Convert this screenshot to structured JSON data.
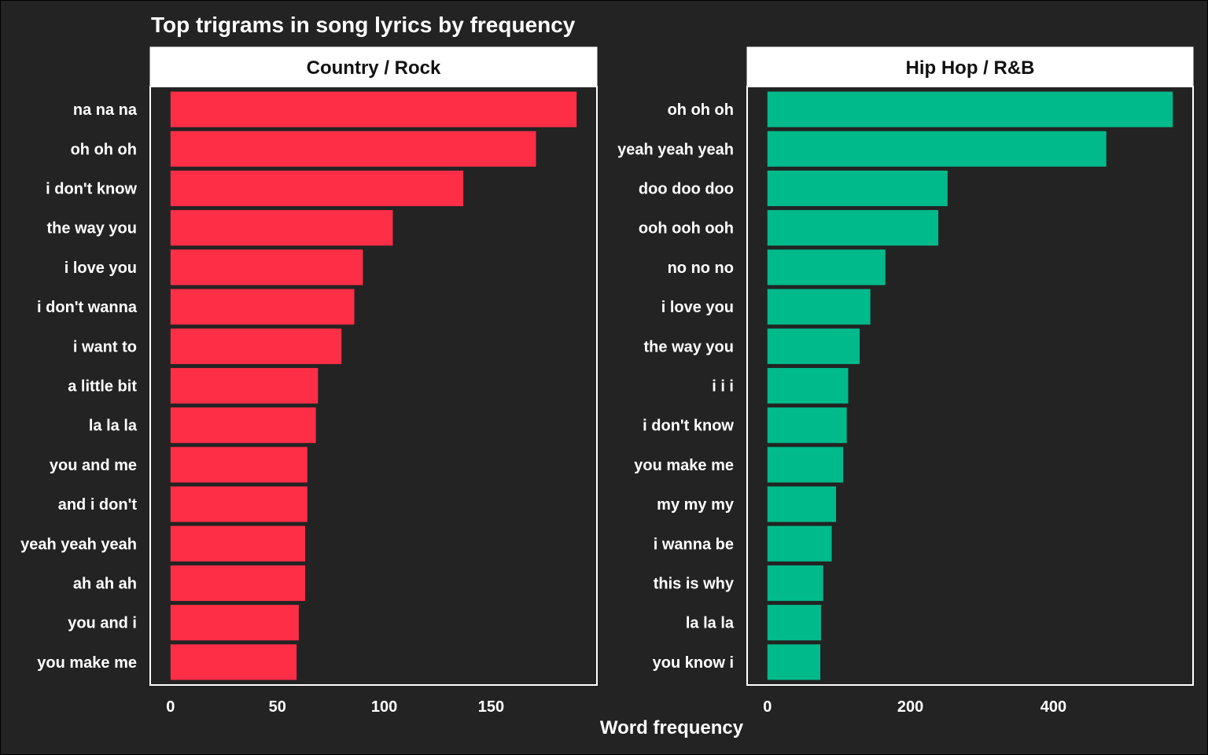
{
  "title": "Top trigrams in song lyrics by frequency",
  "xlabel": "Word frequency",
  "chart_data": [
    {
      "type": "bar",
      "orientation": "horizontal",
      "panel_title": "Country / Rock",
      "color": "#FF2E47",
      "categories": [
        "na na na",
        "oh oh oh",
        "i don't know",
        "the way you",
        "i love you",
        "i don't wanna",
        "i want to",
        "a little bit",
        "la la la",
        "you and me",
        "and i don't",
        "yeah yeah yeah",
        "ah ah ah",
        "you and i",
        "you make me"
      ],
      "values": [
        190,
        171,
        137,
        104,
        90,
        86,
        80,
        69,
        68,
        64,
        64,
        63,
        63,
        60,
        59
      ],
      "xticks": [
        0,
        50,
        100,
        150
      ],
      "xlim": [
        -9.5,
        199.5
      ]
    },
    {
      "type": "bar",
      "orientation": "horizontal",
      "panel_title": "Hip Hop / R&B",
      "color": "#00BA8B",
      "categories": [
        "oh oh oh",
        "yeah yeah yeah",
        "doo doo doo",
        "ooh ooh ooh",
        "no no no",
        "i love you",
        "the way you",
        "i i i",
        "i don't know",
        "you make me",
        "my my my",
        "i wanna be",
        "this is why",
        "la la la",
        "you know i"
      ],
      "values": [
        567,
        474,
        252,
        239,
        165,
        144,
        129,
        113,
        111,
        106,
        96,
        90,
        78,
        75,
        74
      ],
      "xticks": [
        0,
        200,
        400
      ],
      "xlim": [
        -28.35,
        595.35
      ]
    }
  ]
}
